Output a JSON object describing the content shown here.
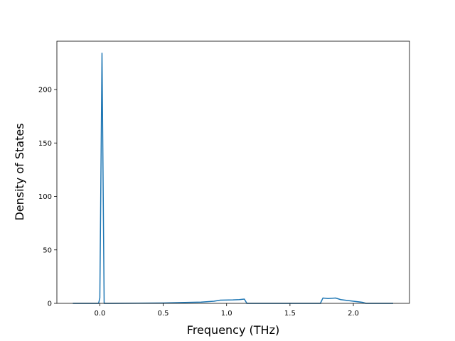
{
  "chart_data": {
    "type": "line",
    "xlabel": "Frequency (THz)",
    "ylabel": "Density of States",
    "x": [
      -0.213,
      -0.01,
      0.0,
      0.017,
      0.034,
      0.1,
      0.5,
      0.8,
      0.9,
      0.95,
      1.05,
      1.1,
      1.14,
      1.16,
      1.74,
      1.76,
      1.8,
      1.86,
      1.9,
      2.0,
      2.07,
      2.1,
      2.314
    ],
    "values": [
      0,
      0,
      5,
      234,
      0,
      0,
      0.3,
      1.2,
      2,
      3,
      3.2,
      3.5,
      4,
      0,
      0,
      5,
      4.5,
      5,
      3.5,
      2,
      1,
      0,
      0
    ],
    "color": "#1f77b4",
    "xlim": [
      -0.339,
      2.443
    ],
    "ylim": [
      0,
      245.2
    ],
    "xticks": [
      {
        "value": 0,
        "label": "0.0"
      },
      {
        "value": 0.5,
        "label": "0.5"
      },
      {
        "value": 1,
        "label": "1.0"
      },
      {
        "value": 1.5,
        "label": "1.5"
      },
      {
        "value": 2,
        "label": "2.0"
      }
    ],
    "yticks": [
      0,
      50,
      100,
      150,
      200
    ],
    "grid": false
  }
}
